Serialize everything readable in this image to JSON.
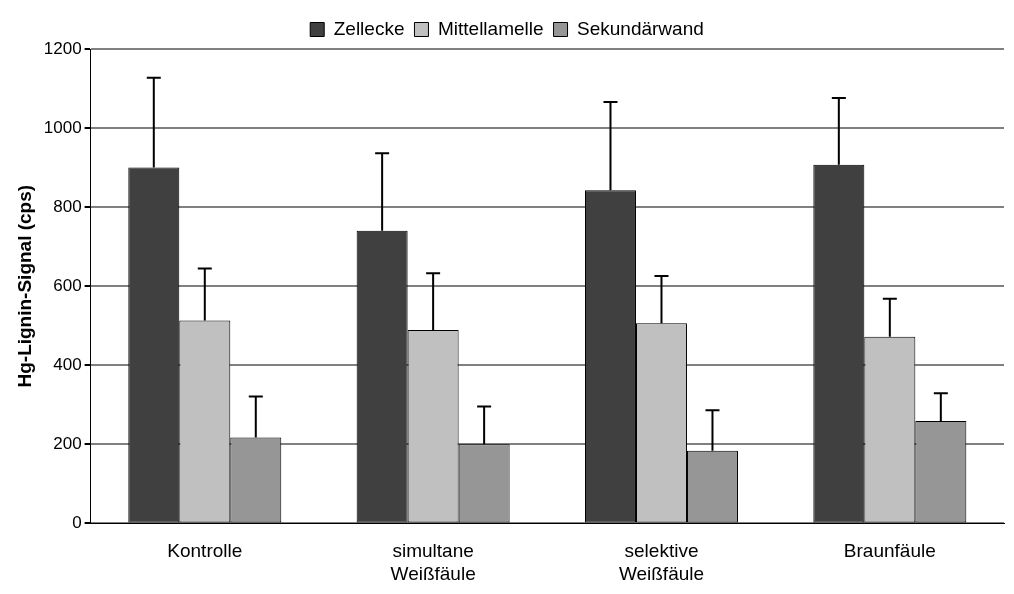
{
  "chart_data": {
    "type": "bar",
    "ylabel": "Hg-Lignin-Signal (cps)",
    "categories": [
      "Kontrolle",
      "simultane\nWeißfäule",
      "selektive\nWeißfäule",
      "Braunfäule"
    ],
    "series": [
      {
        "name": "Zellecke",
        "color": "#404040",
        "values": [
          900,
          740,
          843,
          907
        ],
        "errors": [
          [
            900,
            1127
          ],
          [
            740,
            936
          ],
          [
            843,
            1066
          ],
          [
            907,
            1076
          ]
        ]
      },
      {
        "name": "Mittellamelle",
        "color": "#c0c0c0",
        "values": [
          513,
          489,
          506,
          472
        ],
        "errors": [
          [
            513,
            645
          ],
          [
            489,
            633
          ],
          [
            506,
            626
          ],
          [
            472,
            568
          ]
        ]
      },
      {
        "name": "Sekundärwand",
        "color": "#969696",
        "values": [
          217,
          200,
          184,
          259
        ],
        "errors": [
          [
            217,
            321
          ],
          [
            200,
            296
          ],
          [
            184,
            286
          ],
          [
            259,
            329
          ]
        ]
      }
    ],
    "ylim": [
      0,
      1200
    ],
    "yticks": [
      0,
      200,
      400,
      600,
      800,
      1000,
      1200
    ],
    "grid": "y",
    "legend": "top"
  }
}
